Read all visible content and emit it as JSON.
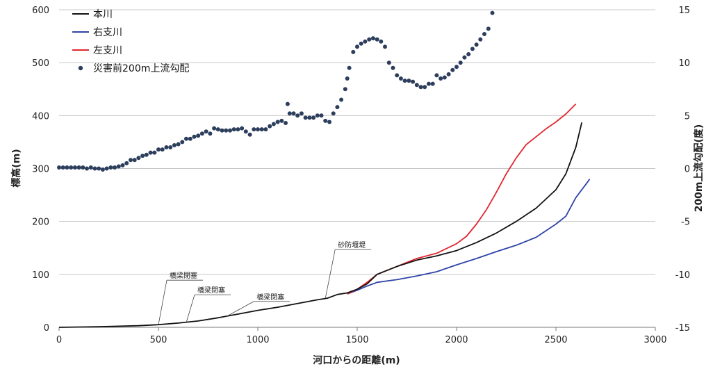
{
  "chart_data": {
    "type": "line",
    "title": "",
    "xlabel": "河口からの距離(m)",
    "ylabel_left": "標高(m)",
    "ylabel_right": "200m上流勾配(度)",
    "xlim": [
      0,
      3000
    ],
    "ylim_left": [
      0,
      600
    ],
    "ylim_right": [
      -15,
      15
    ],
    "x_ticks": [
      "0",
      "500",
      "1000",
      "1500",
      "2000",
      "2500",
      "3000"
    ],
    "y_left_ticks": [
      "0",
      "100",
      "200",
      "300",
      "400",
      "500",
      "600"
    ],
    "y_right_ticks": [
      "-15",
      "-10",
      "-5",
      "0",
      "5",
      "10",
      "15"
    ],
    "grid": "horizontal",
    "legend_position": "top-left",
    "legend": [
      "本川",
      "右支川",
      "左支川",
      "災害前200m上流勾配"
    ],
    "colors": {
      "main": "#111111",
      "right_branch": "#2e43a6",
      "left_branch": "#e0262e",
      "gradient": "#2c3e5c",
      "grid": "#c8c8c8"
    },
    "series": [
      {
        "name": "本川",
        "axis": "left",
        "points": [
          [
            0,
            0
          ],
          [
            200,
            1
          ],
          [
            400,
            3
          ],
          [
            500,
            5
          ],
          [
            600,
            8
          ],
          [
            700,
            12
          ],
          [
            800,
            18
          ],
          [
            900,
            25
          ],
          [
            1000,
            32
          ],
          [
            1100,
            38
          ],
          [
            1200,
            45
          ],
          [
            1300,
            52
          ],
          [
            1350,
            55
          ],
          [
            1400,
            62
          ],
          [
            1450,
            65
          ],
          [
            1500,
            72
          ],
          [
            1550,
            82
          ],
          [
            1600,
            100
          ],
          [
            1700,
            115
          ],
          [
            1800,
            127
          ],
          [
            1900,
            135
          ],
          [
            2000,
            145
          ],
          [
            2100,
            160
          ],
          [
            2200,
            178
          ],
          [
            2300,
            200
          ],
          [
            2400,
            225
          ],
          [
            2500,
            260
          ],
          [
            2550,
            290
          ],
          [
            2600,
            340
          ],
          [
            2630,
            387
          ]
        ]
      },
      {
        "name": "右支川",
        "axis": "left",
        "points": [
          [
            1450,
            63
          ],
          [
            1500,
            70
          ],
          [
            1550,
            78
          ],
          [
            1600,
            85
          ],
          [
            1700,
            90
          ],
          [
            1800,
            97
          ],
          [
            1900,
            105
          ],
          [
            2000,
            118
          ],
          [
            2100,
            130
          ],
          [
            2200,
            143
          ],
          [
            2300,
            155
          ],
          [
            2400,
            170
          ],
          [
            2500,
            195
          ],
          [
            2550,
            210
          ],
          [
            2600,
            245
          ],
          [
            2650,
            270
          ],
          [
            2670,
            280
          ]
        ]
      },
      {
        "name": "左支川",
        "axis": "left",
        "points": [
          [
            1450,
            63
          ],
          [
            1500,
            72
          ],
          [
            1550,
            85
          ],
          [
            1600,
            100
          ],
          [
            1700,
            115
          ],
          [
            1800,
            130
          ],
          [
            1900,
            140
          ],
          [
            2000,
            158
          ],
          [
            2050,
            172
          ],
          [
            2100,
            195
          ],
          [
            2150,
            222
          ],
          [
            2200,
            255
          ],
          [
            2250,
            290
          ],
          [
            2300,
            320
          ],
          [
            2350,
            345
          ],
          [
            2400,
            360
          ],
          [
            2450,
            375
          ],
          [
            2500,
            388
          ],
          [
            2550,
            403
          ],
          [
            2600,
            422
          ]
        ]
      },
      {
        "name": "災害前200m上流勾配",
        "axis": "right",
        "type": "scatter",
        "points": [
          [
            0,
            0.1
          ],
          [
            20,
            0.1
          ],
          [
            40,
            0.1
          ],
          [
            60,
            0.1
          ],
          [
            80,
            0.1
          ],
          [
            100,
            0.1
          ],
          [
            120,
            0.1
          ],
          [
            140,
            0.0
          ],
          [
            160,
            0.1
          ],
          [
            180,
            0.0
          ],
          [
            200,
            0.0
          ],
          [
            220,
            -0.1
          ],
          [
            240,
            0.0
          ],
          [
            260,
            0.1
          ],
          [
            280,
            0.1
          ],
          [
            300,
            0.2
          ],
          [
            320,
            0.3
          ],
          [
            340,
            0.5
          ],
          [
            360,
            0.8
          ],
          [
            380,
            0.8
          ],
          [
            400,
            1.0
          ],
          [
            420,
            1.2
          ],
          [
            440,
            1.3
          ],
          [
            460,
            1.5
          ],
          [
            480,
            1.5
          ],
          [
            500,
            1.8
          ],
          [
            520,
            1.8
          ],
          [
            540,
            2.0
          ],
          [
            560,
            2.0
          ],
          [
            580,
            2.2
          ],
          [
            600,
            2.3
          ],
          [
            620,
            2.5
          ],
          [
            640,
            2.8
          ],
          [
            660,
            2.8
          ],
          [
            680,
            3.0
          ],
          [
            700,
            3.1
          ],
          [
            720,
            3.3
          ],
          [
            740,
            3.5
          ],
          [
            760,
            3.3
          ],
          [
            780,
            3.8
          ],
          [
            800,
            3.7
          ],
          [
            820,
            3.6
          ],
          [
            840,
            3.6
          ],
          [
            860,
            3.6
          ],
          [
            880,
            3.7
          ],
          [
            900,
            3.7
          ],
          [
            920,
            3.8
          ],
          [
            940,
            3.5
          ],
          [
            960,
            3.2
          ],
          [
            980,
            3.7
          ],
          [
            1000,
            3.7
          ],
          [
            1020,
            3.7
          ],
          [
            1040,
            3.7
          ],
          [
            1060,
            4.0
          ],
          [
            1080,
            4.2
          ],
          [
            1100,
            4.4
          ],
          [
            1120,
            4.5
          ],
          [
            1140,
            4.3
          ],
          [
            1150,
            6.1
          ],
          [
            1160,
            5.2
          ],
          [
            1180,
            5.2
          ],
          [
            1200,
            5.0
          ],
          [
            1220,
            5.2
          ],
          [
            1240,
            4.8
          ],
          [
            1260,
            4.8
          ],
          [
            1280,
            4.8
          ],
          [
            1300,
            5.0
          ],
          [
            1320,
            5.0
          ],
          [
            1340,
            4.5
          ],
          [
            1360,
            4.4
          ],
          [
            1380,
            5.2
          ],
          [
            1400,
            5.8
          ],
          [
            1420,
            6.5
          ],
          [
            1440,
            7.5
          ],
          [
            1450,
            8.5
          ],
          [
            1460,
            9.5
          ],
          [
            1480,
            11.0
          ],
          [
            1500,
            11.5
          ],
          [
            1520,
            11.8
          ],
          [
            1540,
            12.0
          ],
          [
            1560,
            12.2
          ],
          [
            1580,
            12.3
          ],
          [
            1600,
            12.2
          ],
          [
            1620,
            12.0
          ],
          [
            1640,
            11.5
          ],
          [
            1660,
            10.0
          ],
          [
            1680,
            9.5
          ],
          [
            1700,
            8.8
          ],
          [
            1720,
            8.5
          ],
          [
            1740,
            8.3
          ],
          [
            1760,
            8.3
          ],
          [
            1780,
            8.2
          ],
          [
            1800,
            7.9
          ],
          [
            1820,
            7.7
          ],
          [
            1840,
            7.7
          ],
          [
            1860,
            8.0
          ],
          [
            1880,
            8.0
          ],
          [
            1900,
            8.8
          ],
          [
            1920,
            8.5
          ],
          [
            1940,
            8.6
          ],
          [
            1960,
            8.9
          ],
          [
            1980,
            9.3
          ],
          [
            2000,
            9.6
          ],
          [
            2020,
            10.0
          ],
          [
            2040,
            10.5
          ],
          [
            2060,
            10.8
          ],
          [
            2080,
            11.3
          ],
          [
            2100,
            11.7
          ],
          [
            2120,
            12.2
          ],
          [
            2140,
            12.7
          ],
          [
            2160,
            13.2
          ],
          [
            2180,
            14.7
          ]
        ]
      }
    ],
    "annotations": [
      {
        "text": "橋梁閉塞",
        "x": 500,
        "y": 5
      },
      {
        "text": "橋梁閉塞",
        "x": 640,
        "y": 9
      },
      {
        "text": "橋梁閉塞",
        "x": 840,
        "y": 20
      },
      {
        "text": "砂防堰堤",
        "x": 1340,
        "y": 55
      }
    ]
  }
}
